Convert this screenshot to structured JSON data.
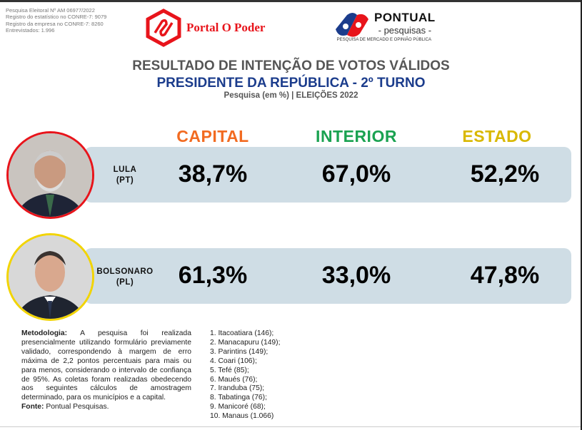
{
  "meta": [
    "Pesquisa Eleitoral Nº AM 06977/2022",
    "Registro do estatístico no CONRE-7: 9079",
    "Registro da empresa no CONRE-7: 8260",
    "Entrevistados: 1.996"
  ],
  "logos": {
    "portal": "Portal O Poder",
    "pontual": "PONTUAL",
    "pontual_sub": "- pesquisas -",
    "pontual_tag": "PESQUISA DE MERCADO E OPINIÃO PÚBLICA"
  },
  "title": {
    "line1": "RESULTADO DE INTENÇÃO DE VOTOS VÁLIDOS",
    "line2": "PRESIDENTE DA REPÚBLICA - 2º TURNO",
    "line3": "Pesquisa  (em %) | ELEIÇÕES 2022"
  },
  "columns": [
    {
      "label": "CAPITAL",
      "color": "#f26b21"
    },
    {
      "label": "INTERIOR",
      "color": "#1aa251"
    },
    {
      "label": "ESTADO",
      "color": "#d9b800"
    }
  ],
  "candidates": [
    {
      "name": "LULA",
      "party": "(PT)",
      "border": "#e8141b",
      "values": [
        "38,7%",
        "67,0%",
        "52,2%"
      ]
    },
    {
      "name": "BOLSONARO",
      "party": "(PL)",
      "border": "#f2d400",
      "values": [
        "61,3%",
        "33,0%",
        "47,8%"
      ]
    }
  ],
  "methodology": {
    "label": "Metodologia:",
    "text": " A pesquisa foi realizada presencialmente utilizando formulário previamente validado, correspondendo à margem de erro máxima de 2,2 pontos percentuais para mais ou para menos, considerando o intervalo de confiança de 95%. As coletas foram realizadas obedecendo aos seguintes cálculos de amostragem determinado, para os municípios e a capital.",
    "source_label": "Fonte:",
    "source": " Pontual Pesquisas."
  },
  "towns": [
    "1. Itacoatiara (146);",
    "2. Manacapuru (149);",
    "3. Parintins (149);",
    "4. Coari (106);",
    "5. Tefé (85);",
    "6. Maués (76);",
    "7. Iranduba (75);",
    "8. Tabatinga (76);",
    "9. Manicoré (68);",
    "10. Manaus (1.066)"
  ]
}
